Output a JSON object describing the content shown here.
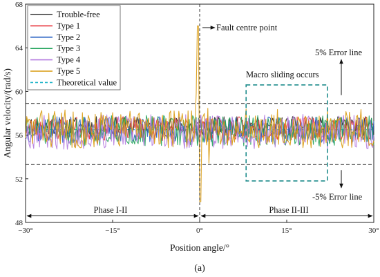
{
  "chart_data": {
    "type": "line",
    "title": "",
    "xlabel": "Position angle/°",
    "ylabel": "Angular velocity/(rad/s)",
    "xlim": [
      -30,
      30
    ],
    "ylim": [
      48,
      68
    ],
    "x_ticks": [
      -30,
      -15,
      0,
      15,
      30
    ],
    "x_tick_labels": [
      "−30°",
      "−15°",
      "0°",
      "15°",
      "30°"
    ],
    "y_ticks": [
      48,
      52,
      56,
      60,
      64,
      68
    ],
    "y_tick_labels": [
      "48",
      "52",
      "56",
      "60",
      "64",
      "68"
    ],
    "legend_position": "top-left",
    "series": [
      {
        "name": "Trouble-free",
        "color": "#333333",
        "base": 56.8,
        "amp": 0.9,
        "seed": 11
      },
      {
        "name": "Type 1",
        "color": "#e8323a",
        "base": 56.6,
        "amp": 1.1,
        "seed": 23
      },
      {
        "name": "Type 2",
        "color": "#2a63c4",
        "base": 56.5,
        "amp": 1.2,
        "seed": 37
      },
      {
        "name": "Type 3",
        "color": "#21a35a",
        "base": 56.4,
        "amp": 1.4,
        "seed": 51
      },
      {
        "name": "Type 4",
        "color": "#b57be0",
        "base": 56.3,
        "amp": 1.6,
        "seed": 67
      },
      {
        "name": "Type 5",
        "color": "#d99a0e",
        "base": 56.6,
        "amp": 1.8,
        "seed": 83
      }
    ],
    "spike": {
      "series": "Type 5",
      "peak": {
        "x": -0.3,
        "y": 66.0
      },
      "trough": {
        "x": 0.1,
        "y": 49.9
      }
    },
    "theoretical_value": {
      "name": "Theoretical value",
      "y": 56.5,
      "color": "#1fb5c9"
    },
    "reference_lines": [
      {
        "name": "5% Error line",
        "y": 58.9
      },
      {
        "name": "-5% Error line",
        "y": 53.3
      }
    ],
    "annotations": {
      "fault_center": "Fault centre point",
      "error_upper": "5% Error line",
      "error_lower": "-5% Error line",
      "macro_sliding": "Macro sliding occurs",
      "phase_left": "Phase I-II",
      "phase_right": "Phase II-III"
    },
    "macro_box": {
      "x": [
        8,
        22
      ],
      "y": [
        51.8,
        60.6
      ]
    },
    "phase_arrow_y": 48.6,
    "caption": "(a)"
  }
}
